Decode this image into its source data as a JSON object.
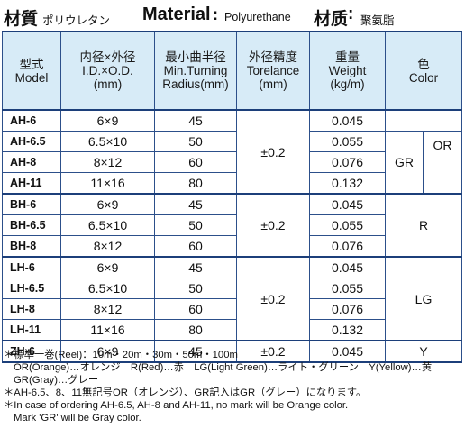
{
  "header": {
    "jp_label": "材質",
    "jp_material": "ポリウレタン",
    "en_label": "Material",
    "colon": ":",
    "en_material": "Polyurethane",
    "cn_label": "材质",
    "cn_colon": ":",
    "cn_material": "聚氨脂"
  },
  "table": {
    "headers": {
      "model": [
        "型式",
        "Model"
      ],
      "size": [
        "内径×外径",
        "I.D.×O.D.",
        "(mm)"
      ],
      "radius": [
        "最小曲半径",
        "Min.Turning",
        "Radius(mm)"
      ],
      "tolerance": [
        "外径精度",
        "Torelance",
        "(mm)"
      ],
      "weight": [
        "重量",
        "Weight",
        "(kg/m)"
      ],
      "color": [
        "色",
        "Color"
      ]
    },
    "rows": [
      {
        "model": "AH-6",
        "size": "6×9",
        "radius": "45",
        "weight": "0.045"
      },
      {
        "model": "AH-6.5",
        "size": "6.5×10",
        "radius": "50",
        "weight": "0.055"
      },
      {
        "model": "AH-8",
        "size": "8×12",
        "radius": "60",
        "weight": "0.076"
      },
      {
        "model": "AH-11",
        "size": "11×16",
        "radius": "80",
        "weight": "0.132"
      },
      {
        "model": "BH-6",
        "size": "6×9",
        "radius": "45",
        "weight": "0.045"
      },
      {
        "model": "BH-6.5",
        "size": "6.5×10",
        "radius": "50",
        "weight": "0.055"
      },
      {
        "model": "BH-8",
        "size": "8×12",
        "radius": "60",
        "weight": "0.076"
      },
      {
        "model": "LH-6",
        "size": "6×9",
        "radius": "45",
        "weight": "0.045"
      },
      {
        "model": "LH-6.5",
        "size": "6.5×10",
        "radius": "50",
        "weight": "0.055"
      },
      {
        "model": "LH-8",
        "size": "8×12",
        "radius": "60",
        "weight": "0.076"
      },
      {
        "model": "LH-11",
        "size": "11×16",
        "radius": "80",
        "weight": "0.132"
      },
      {
        "model": "ZH-6",
        "size": "6×9",
        "radius": "45",
        "weight": "0.045"
      }
    ],
    "tolerances": {
      "ah": "±0.2",
      "bh": "±0.2",
      "lh": "±0.2",
      "zh": "±0.2"
    },
    "colors": {
      "ah_gr": "GR",
      "ah_or": "OR",
      "bh": "R",
      "lh": "LG",
      "zh": "Y"
    }
  },
  "notes": [
    "＊標準一巻(Reel)：10m・20m・30m・50m・100m",
    "OR(Orange)…オレンジ　R(Red)…赤　LG(Light Green)…ライト・グリーン　Y(Yellow)…黄",
    "GR(Gray)…グレー",
    "＊AH-6.5、8、11無記号OR（オレンジ）、GR記入はGR（グレー）になります。",
    "＊In case of ordering AH-6.5, AH-8 and AH-11, no mark will be Orange color.",
    "Mark 'GR' will be Gray color."
  ]
}
